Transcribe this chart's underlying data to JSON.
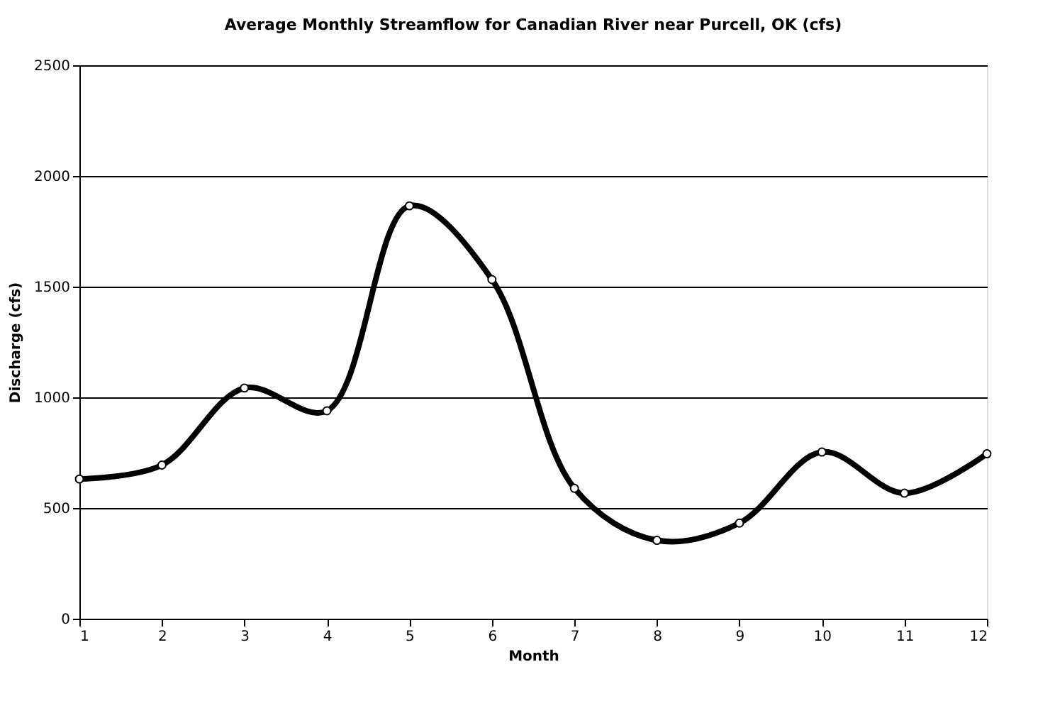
{
  "chart_data": {
    "type": "line",
    "title": "Average Monthly Streamflow for Canadian River near Purcell, OK (cfs)",
    "xlabel": "Month",
    "ylabel": "Discharge (cfs)",
    "x": [
      1,
      2,
      3,
      4,
      5,
      6,
      7,
      8,
      9,
      10,
      11,
      12
    ],
    "series": [
      {
        "color": "#000000",
        "values": [
          631,
          694,
          1042,
          939,
          1865,
          1532,
          589,
          354,
          432,
          753,
          567,
          745
        ]
      }
    ],
    "xlim": [
      1,
      12
    ],
    "xticks": [
      1,
      2,
      3,
      4,
      5,
      6,
      7,
      8,
      9,
      10,
      11,
      12
    ],
    "ylim": [
      0,
      2500
    ],
    "yticks": [
      0,
      500,
      1000,
      1500,
      2000,
      2500
    ],
    "grid": "y",
    "marker": "circle",
    "line_style": "solid"
  }
}
